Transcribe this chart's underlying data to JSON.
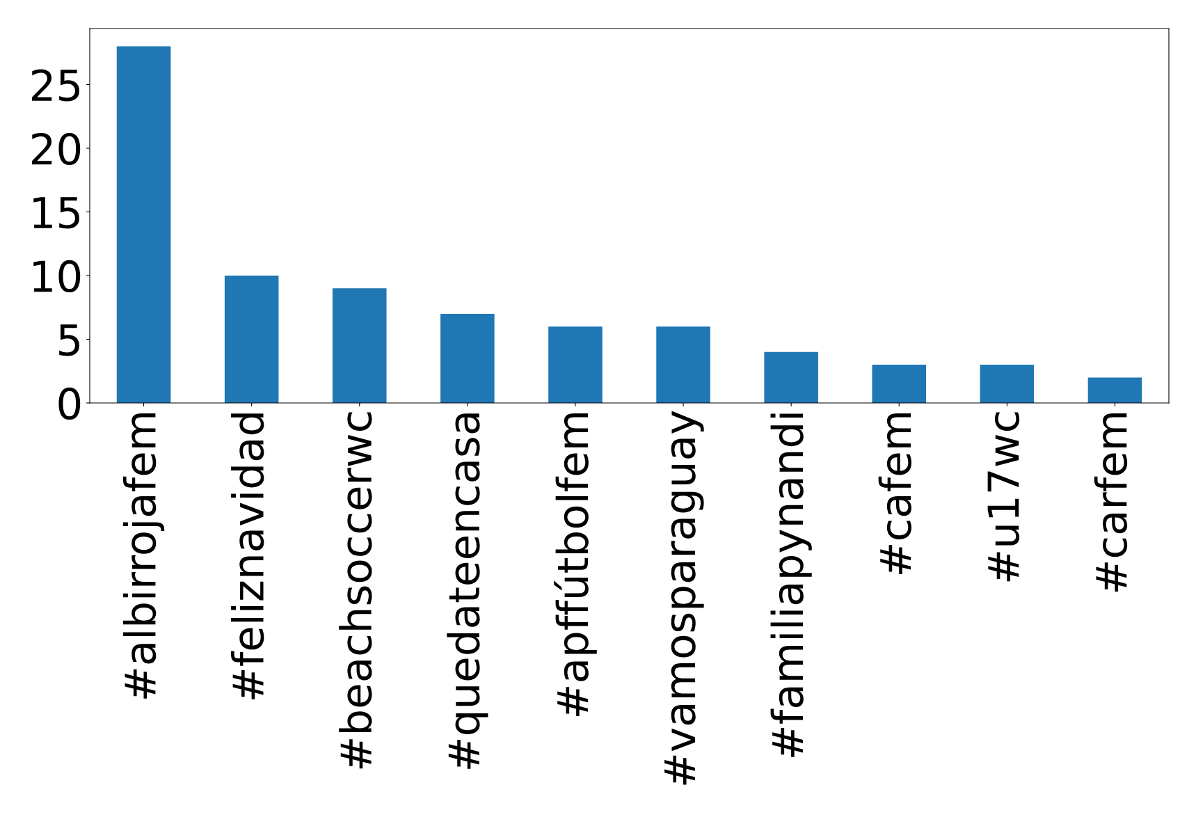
{
  "chart_data": {
    "type": "bar",
    "categories": [
      "#albirrojafem",
      "#feliznavidad",
      "#beachsoccerwc",
      "#quedateencasa",
      "#apffútbolfem",
      "#vamosparaguay",
      "#familiapynandi",
      "#cafem",
      "#u17wc",
      "#carfem"
    ],
    "values": [
      28,
      10,
      9,
      7,
      6,
      6,
      4,
      3,
      3,
      2
    ],
    "color": "#1f77b4",
    "ylim": [
      0,
      29.4
    ],
    "yticks": [
      0,
      5,
      10,
      15,
      20,
      25
    ],
    "grid": false
  }
}
